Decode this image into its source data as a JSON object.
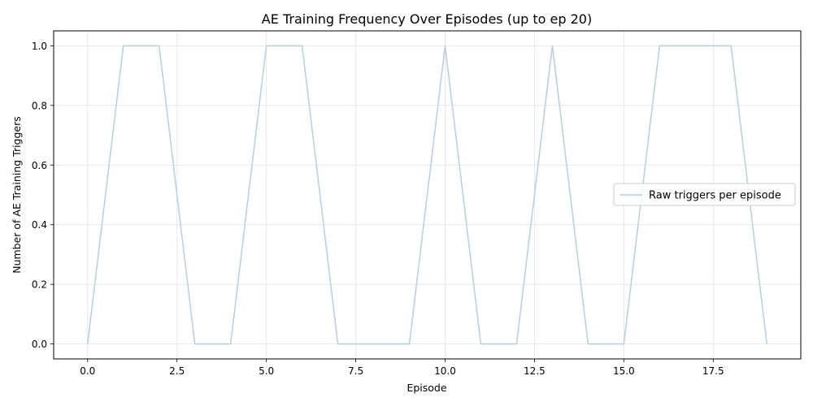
{
  "chart_data": {
    "type": "line",
    "title": "AE Training Frequency Over Episodes (up to ep 20)",
    "xlabel": "Episode",
    "ylabel": "Number of AE Training Triggers",
    "xlim": [
      -0.95,
      19.95
    ],
    "ylim": [
      -0.05,
      1.05
    ],
    "xticks": [
      0.0,
      2.5,
      5.0,
      7.5,
      10.0,
      12.5,
      15.0,
      17.5
    ],
    "xtick_labels": [
      "0.0",
      "2.5",
      "5.0",
      "7.5",
      "10.0",
      "12.5",
      "15.0",
      "17.5"
    ],
    "yticks": [
      0.0,
      0.2,
      0.4,
      0.6,
      0.8,
      1.0
    ],
    "ytick_labels": [
      "0.0",
      "0.2",
      "0.4",
      "0.6",
      "0.8",
      "1.0"
    ],
    "grid": true,
    "legend_position": "center-right",
    "series": [
      {
        "name": "Raw triggers per episode",
        "color": "#b4cfe3",
        "x": [
          0,
          1,
          2,
          3,
          4,
          5,
          6,
          7,
          8,
          9,
          10,
          11,
          12,
          13,
          14,
          15,
          16,
          17,
          18,
          19
        ],
        "values": [
          0,
          1,
          1,
          0,
          0,
          1,
          1,
          0,
          0,
          0,
          1,
          0,
          0,
          1,
          0,
          0,
          1,
          1,
          1,
          0
        ]
      }
    ]
  }
}
